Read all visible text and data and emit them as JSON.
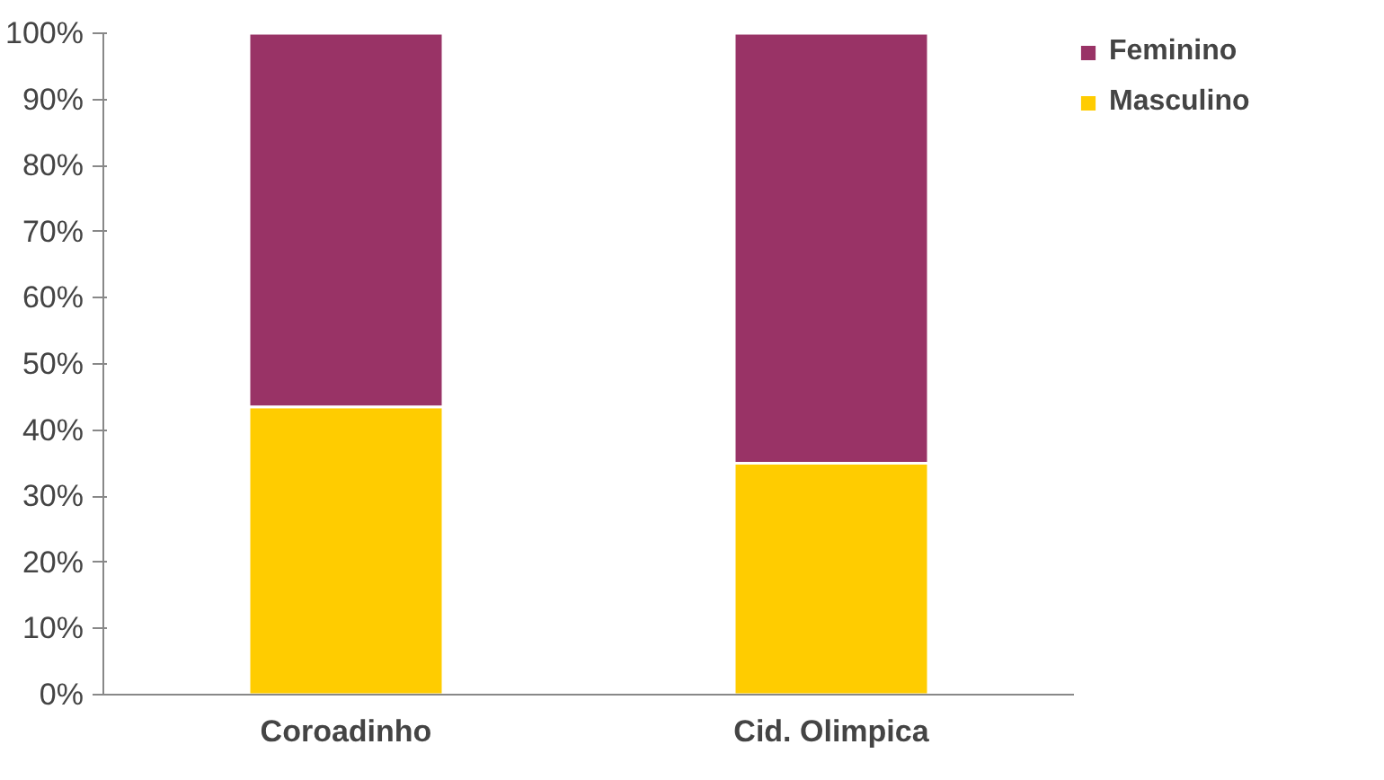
{
  "chart_data": {
    "type": "bar",
    "stacked": true,
    "categories": [
      "Coroadinho",
      "Cid. Olimpica"
    ],
    "series": [
      {
        "name": "Masculino",
        "color": "#ffcc00",
        "values": [
          43.5,
          35
        ]
      },
      {
        "name": "Feminino",
        "color": "#993366",
        "values": [
          56.5,
          65
        ]
      }
    ],
    "ylim": [
      0,
      100
    ],
    "yticks": [
      {
        "value": 0,
        "label": "0%"
      },
      {
        "value": 10,
        "label": "10%"
      },
      {
        "value": 20,
        "label": "20%"
      },
      {
        "value": 30,
        "label": "30%"
      },
      {
        "value": 40,
        "label": "40%"
      },
      {
        "value": 50,
        "label": "50%"
      },
      {
        "value": 60,
        "label": "60%"
      },
      {
        "value": 70,
        "label": "70%"
      },
      {
        "value": 80,
        "label": "80%"
      },
      {
        "value": 90,
        "label": "90%"
      },
      {
        "value": 100,
        "label": "100%"
      }
    ],
    "grid": false,
    "legend": "top right"
  }
}
